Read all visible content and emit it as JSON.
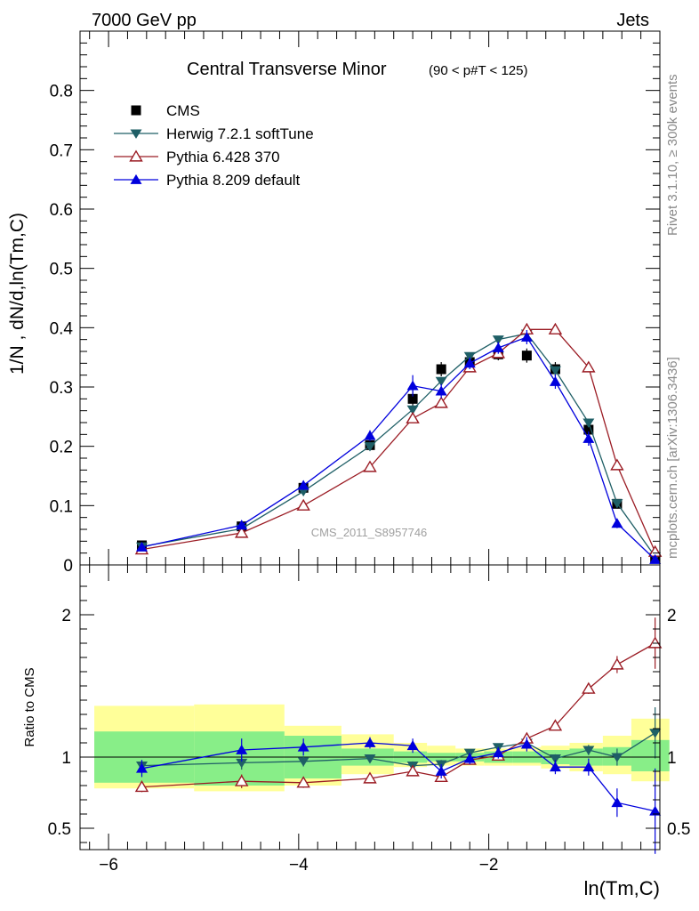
{
  "header": {
    "left": "7000 GeV pp",
    "right": "Jets"
  },
  "side_labels": {
    "rivet": "Rivet 3.1.10, ≥ 300k events",
    "mcplots": "mcplots.cern.ch [arXiv:1306.3436]"
  },
  "watermark": "CMS_2011_S8957746",
  "chart_data": [
    {
      "type": "line",
      "title": "Central Transverse Minor",
      "title_suffix": "(90 < p#T < 125)",
      "ylabel": "1/N , dN/d,ln(Tm,C)",
      "xlabel": "ln(Tm,C)",
      "xlim": [
        -6.3,
        -0.2
      ],
      "ylim": [
        0,
        0.9
      ],
      "yticks": [
        "0",
        "0.1",
        "0.2",
        "0.3",
        "0.4",
        "0.5",
        "0.6",
        "0.7",
        "0.8"
      ],
      "xticks": [
        "−6",
        "−4",
        "−2"
      ],
      "x": [
        -5.65,
        -4.6,
        -3.95,
        -3.25,
        -2.8,
        -2.5,
        -2.2,
        -1.9,
        -1.6,
        -1.3,
        -0.95,
        -0.65,
        -0.25
      ],
      "series": [
        {
          "name": "CMS",
          "color": "#000000",
          "marker": "square",
          "values": [
            0.033,
            0.065,
            0.13,
            0.202,
            0.28,
            0.33,
            0.342,
            0.355,
            0.353,
            0.33,
            0.228,
            0.103,
            0.012
          ]
        },
        {
          "name": "Herwig 7.2.1 softTune",
          "color": "#1f5f66",
          "marker": "triangle-down",
          "values": [
            0.031,
            0.061,
            0.124,
            0.2,
            0.262,
            0.31,
            0.352,
            0.38,
            0.39,
            0.328,
            0.24,
            0.104,
            0.014
          ]
        },
        {
          "name": "Pythia 6.428 370",
          "color": "#9b1c24",
          "marker": "triangle-up-open",
          "values": [
            0.026,
            0.054,
            0.1,
            0.165,
            0.247,
            0.273,
            0.333,
            0.357,
            0.397,
            0.397,
            0.333,
            0.168,
            0.022
          ]
        },
        {
          "name": "Pythia 8.209 default",
          "color": "#0000dd",
          "marker": "triangle-up",
          "values": [
            0.03,
            0.067,
            0.134,
            0.218,
            0.302,
            0.293,
            0.34,
            0.366,
            0.384,
            0.309,
            0.213,
            0.07,
            0.009
          ]
        }
      ]
    },
    {
      "type": "line",
      "title": "",
      "ylabel": "Ratio to CMS",
      "xlabel": "ln(Tm,C)",
      "xlim": [
        -6.3,
        -0.2
      ],
      "ylim": [
        0.35,
        2.35
      ],
      "yticks": [
        "0.5",
        "1",
        "2"
      ],
      "reference": 1,
      "x": [
        -5.65,
        -4.6,
        -3.95,
        -3.25,
        -2.8,
        -2.5,
        -2.2,
        -1.9,
        -1.6,
        -1.3,
        -0.95,
        -0.65,
        -0.25
      ],
      "band_edges": [
        -6.15,
        -5.1,
        -4.15,
        -3.55,
        -3.0,
        -2.65,
        -2.35,
        -2.05,
        -1.75,
        -1.45,
        -1.15,
        -0.8,
        -0.5,
        -0.1
      ],
      "band_inner": [
        [
          0.82,
          1.18
        ],
        [
          0.8,
          1.18
        ],
        [
          0.85,
          1.15
        ],
        [
          0.94,
          1.06
        ],
        [
          0.96,
          1.04
        ],
        [
          0.97,
          1.03
        ],
        [
          0.97,
          1.03
        ],
        [
          0.96,
          1.04
        ],
        [
          0.96,
          1.04
        ],
        [
          0.95,
          1.05
        ],
        [
          0.94,
          1.06
        ],
        [
          0.94,
          1.07
        ],
        [
          0.9,
          1.12
        ]
      ],
      "band_outer": [
        [
          0.78,
          1.36
        ],
        [
          0.76,
          1.37
        ],
        [
          0.8,
          1.22
        ],
        [
          0.88,
          1.16
        ],
        [
          0.93,
          1.1
        ],
        [
          0.94,
          1.08
        ],
        [
          0.94,
          1.06
        ],
        [
          0.94,
          1.06
        ],
        [
          0.94,
          1.07
        ],
        [
          0.92,
          1.08
        ],
        [
          0.9,
          1.1
        ],
        [
          0.88,
          1.15
        ],
        [
          0.83,
          1.27
        ]
      ],
      "series": [
        {
          "name": "Herwig 7.2.1 softTune",
          "color": "#1f5f66",
          "marker": "triangle-down",
          "values": [
            0.94,
            0.96,
            0.97,
            0.99,
            0.94,
            0.95,
            1.03,
            1.07,
            1.1,
            0.99,
            1.05,
            1.0,
            1.17
          ]
        },
        {
          "name": "Pythia 6.428 370",
          "color": "#9b1c24",
          "marker": "triangle-up-open",
          "values": [
            0.79,
            0.83,
            0.82,
            0.85,
            0.9,
            0.86,
            0.98,
            1.01,
            1.13,
            1.22,
            1.48,
            1.65,
            1.8
          ]
        },
        {
          "name": "Pythia 8.209 default",
          "color": "#0000dd",
          "marker": "triangle-up",
          "values": [
            0.92,
            1.05,
            1.07,
            1.1,
            1.08,
            0.9,
            0.99,
            1.03,
            1.09,
            0.93,
            0.93,
            0.68,
            0.62
          ]
        }
      ]
    }
  ]
}
